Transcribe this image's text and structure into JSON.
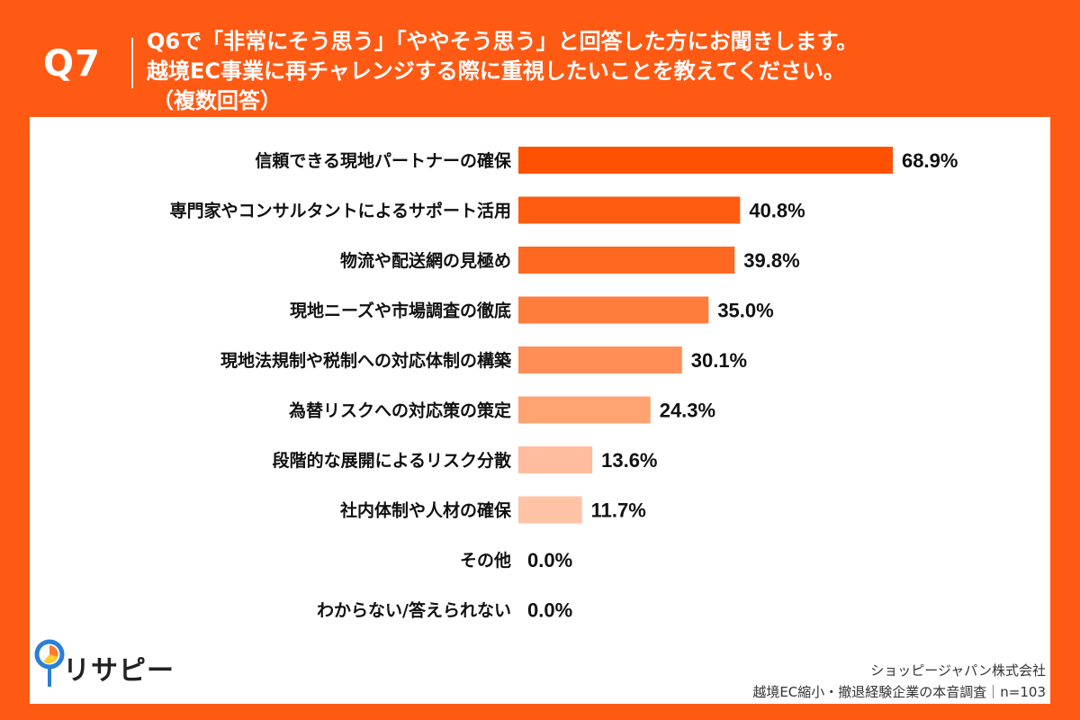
{
  "header": {
    "q_number": "Q7",
    "question_lines": [
      "Q6で「非常にそう思う」「ややそう思う」と回答した方にお聞きします。",
      "越境EC事業に再チャレンジする際に重視したいことを教えてください。",
      "（複数回答）"
    ]
  },
  "chart_data": {
    "type": "bar",
    "orientation": "horizontal",
    "categories": [
      "信頼できる現地パートナーの確保",
      "専門家やコンサルタントによるサポート活用",
      "物流や配送網の見極め",
      "現地ニーズや市場調査の徹底",
      "現地法規制や税制への対応体制の構築",
      "為替リスクへの対応策の策定",
      "段階的な展開によるリスク分散",
      "社内体制や人材の確保",
      "その他",
      "わからない/答えられない"
    ],
    "values": [
      68.9,
      40.8,
      39.8,
      35.0,
      30.1,
      24.3,
      13.6,
      11.7,
      0.0,
      0.0
    ],
    "value_labels": [
      "68.9%",
      "40.8%",
      "39.8%",
      "35.0%",
      "30.1%",
      "24.3%",
      "13.6%",
      "11.7%",
      "0.0%",
      "0.0%"
    ],
    "bar_colors": [
      "#ff5100",
      "#ff5c12",
      "#ff6820",
      "#ff7d3c",
      "#ff8e56",
      "#ffa373",
      "#ffbc9e",
      "#ffc3a6",
      "#ffcfb8",
      "#ffd6c2"
    ],
    "xlim": [
      0,
      68.9
    ]
  },
  "footer": {
    "brand": "リサピー",
    "company": "ショッピージャパン株式会社",
    "survey": "越境EC縮小・撤退経験企業の本音調査｜n=103"
  }
}
